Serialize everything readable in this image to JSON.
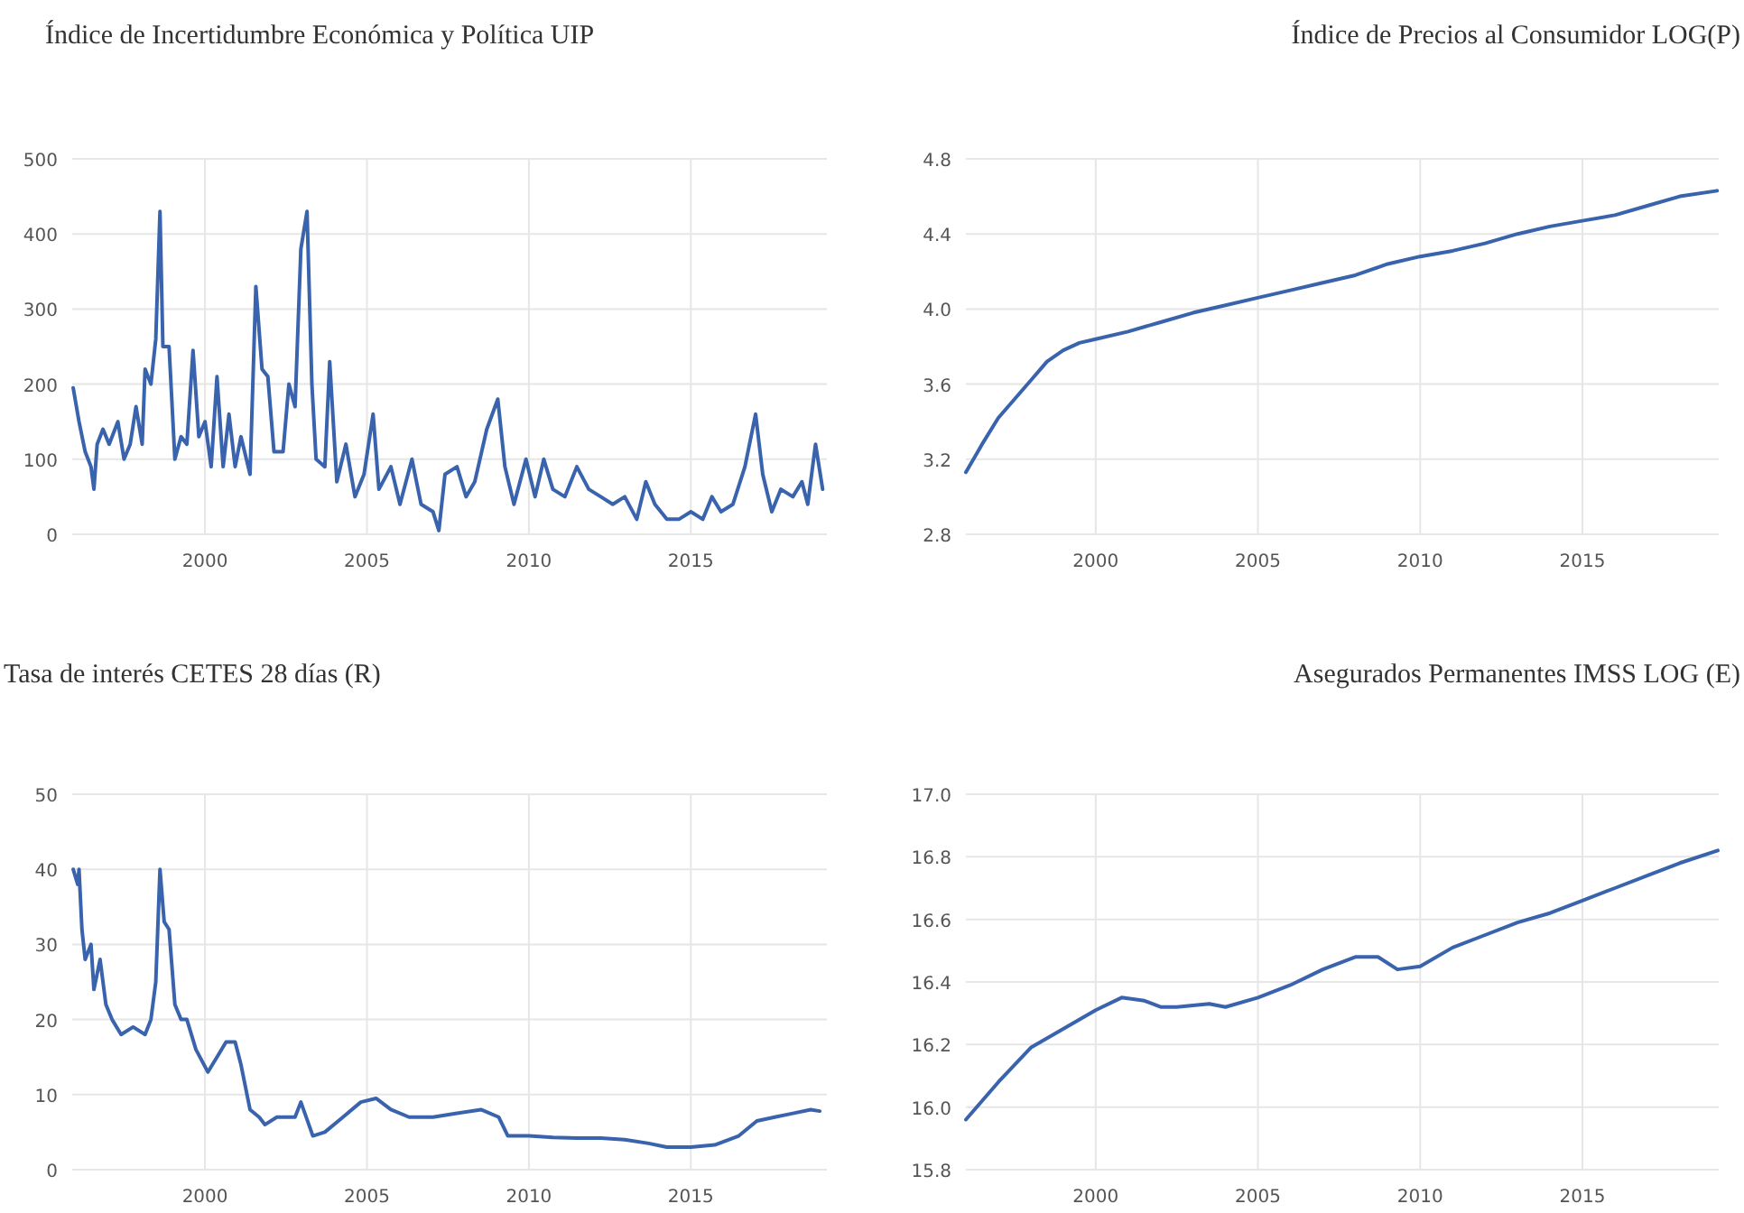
{
  "chart_data": [
    {
      "type": "line",
      "title": "Índice de Incertidumbre Económica y Política UIP",
      "xlim": [
        1995.9,
        2019.2
      ],
      "xticks": [
        2000,
        2005,
        2010,
        2015
      ],
      "ylim": [
        0,
        500
      ],
      "yticks": [
        0,
        100,
        200,
        300,
        400,
        500
      ],
      "grid": true,
      "series": [
        {
          "color": "#3a63ad",
          "x": [
            1995.93,
            1996.11,
            1996.3,
            1996.48,
            1996.57,
            1996.67,
            1996.85,
            1997.04,
            1997.31,
            1997.5,
            1997.69,
            1997.87,
            1998.06,
            1998.15,
            1998.33,
            1998.48,
            1998.61,
            1998.7,
            1998.89,
            1999.07,
            1999.26,
            1999.44,
            1999.63,
            1999.81,
            2000.0,
            2000.19,
            2000.37,
            2000.56,
            2000.74,
            2000.93,
            2001.11,
            2001.39,
            2001.57,
            2001.76,
            2001.94,
            2002.13,
            2002.41,
            2002.59,
            2002.78,
            2002.96,
            2003.15,
            2003.3,
            2003.43,
            2003.7,
            2003.85,
            2004.07,
            2004.35,
            2004.63,
            2004.91,
            2005.19,
            2005.37,
            2005.74,
            2006.02,
            2006.39,
            2006.67,
            2007.04,
            2007.22,
            2007.41,
            2007.78,
            2008.06,
            2008.33,
            2008.7,
            2009.04,
            2009.26,
            2009.54,
            2009.91,
            2010.19,
            2010.46,
            2010.74,
            2011.11,
            2011.48,
            2011.85,
            2012.22,
            2012.59,
            2012.96,
            2013.33,
            2013.61,
            2013.89,
            2014.26,
            2014.63,
            2015.0,
            2015.37,
            2015.65,
            2015.93,
            2016.3,
            2016.67,
            2017.0,
            2017.22,
            2017.5,
            2017.78,
            2018.15,
            2018.43,
            2018.61,
            2018.85,
            2019.07
          ],
          "values": [
            195,
            150,
            110,
            90,
            60,
            120,
            140,
            120,
            150,
            100,
            120,
            170,
            120,
            220,
            200,
            260,
            430,
            250,
            250,
            100,
            130,
            120,
            245,
            130,
            150,
            90,
            210,
            90,
            160,
            90,
            130,
            80,
            330,
            220,
            210,
            110,
            110,
            200,
            170,
            380,
            430,
            200,
            100,
            90,
            230,
            70,
            120,
            50,
            80,
            160,
            60,
            90,
            40,
            100,
            40,
            30,
            5,
            80,
            90,
            50,
            70,
            140,
            180,
            90,
            40,
            100,
            50,
            100,
            60,
            50,
            90,
            60,
            50,
            40,
            50,
            20,
            70,
            40,
            20,
            20,
            30,
            20,
            50,
            30,
            40,
            90,
            160,
            80,
            30,
            60,
            50,
            70,
            40,
            120,
            60
          ]
        }
      ]
    },
    {
      "type": "line",
      "title": "Índice de Precios al Consumidor LOG(P)",
      "xlim": [
        1996.0,
        2019.2
      ],
      "xticks": [
        2000,
        2005,
        2010,
        2015
      ],
      "ylim": [
        2.8,
        4.8
      ],
      "yticks": [
        {
          "value": 2.8,
          "label": "2.8"
        },
        {
          "value": 3.2,
          "label": "3.2"
        },
        {
          "value": 3.6,
          "label": "3.6"
        },
        {
          "value": 4.0,
          "label": "4.0"
        },
        {
          "value": 4.4,
          "label": "4.4"
        },
        {
          "value": 4.8,
          "label": "4.8"
        }
      ],
      "grid": true,
      "series": [
        {
          "color": "#3a63ad",
          "x": [
            1996.0,
            1996.5,
            1997,
            1997.5,
            1998,
            1998.5,
            1999,
            1999.5,
            2000,
            2001,
            2002,
            2003,
            2004,
            2005,
            2006,
            2007,
            2008,
            2009,
            2010,
            2011,
            2012,
            2013,
            2014,
            2015,
            2016,
            2017,
            2018,
            2019.15
          ],
          "values": [
            3.13,
            3.28,
            3.42,
            3.52,
            3.62,
            3.72,
            3.78,
            3.82,
            3.84,
            3.88,
            3.93,
            3.98,
            4.02,
            4.06,
            4.1,
            4.14,
            4.18,
            4.24,
            4.28,
            4.31,
            4.35,
            4.4,
            4.44,
            4.47,
            4.5,
            4.55,
            4.6,
            4.63
          ]
        }
      ]
    },
    {
      "type": "line",
      "title": "Tasa de interés CETES 28 días (R)",
      "xlim": [
        1995.9,
        2019.2
      ],
      "xticks": [
        2000,
        2005,
        2010,
        2015
      ],
      "ylim": [
        0,
        50
      ],
      "yticks": [
        0,
        10,
        20,
        30,
        40,
        50
      ],
      "grid": true,
      "series": [
        {
          "color": "#3a63ad",
          "x": [
            1995.93,
            1996.07,
            1996.11,
            1996.2,
            1996.3,
            1996.48,
            1996.57,
            1996.76,
            1996.94,
            1997.13,
            1997.41,
            1997.78,
            1998.15,
            1998.33,
            1998.48,
            1998.61,
            1998.74,
            1998.89,
            1999.07,
            1999.26,
            1999.44,
            1999.72,
            2000.09,
            2000.37,
            2000.65,
            2000.93,
            2001.11,
            2001.39,
            2001.67,
            2001.85,
            2002.22,
            2002.78,
            2002.96,
            2003.33,
            2003.7,
            2004.26,
            2004.81,
            2005.28,
            2005.74,
            2006.3,
            2007.04,
            2007.78,
            2008.52,
            2009.07,
            2009.35,
            2010.0,
            2010.74,
            2011.48,
            2012.22,
            2012.96,
            2013.7,
            2014.26,
            2015.0,
            2015.74,
            2016.48,
            2017.04,
            2017.59,
            2018.15,
            2018.7,
            2018.98
          ],
          "values": [
            40,
            38,
            40,
            32,
            28,
            30,
            24,
            28,
            22,
            20,
            18,
            19,
            18,
            20,
            25,
            40,
            33,
            32,
            22,
            20,
            20,
            16,
            13,
            15,
            17,
            17,
            14,
            8,
            7,
            6,
            7,
            7,
            9,
            4.5,
            5,
            7,
            9,
            9.5,
            8,
            7,
            7,
            7.5,
            8,
            7,
            4.5,
            4.5,
            4.3,
            4.2,
            4.2,
            4,
            3.5,
            3,
            3,
            3.3,
            4.5,
            6.5,
            7,
            7.5,
            8,
            7.8
          ]
        }
      ]
    },
    {
      "type": "line",
      "title": "Asegurados Permanentes IMSS LOG (E)",
      "xlim": [
        1996.0,
        2019.2
      ],
      "xticks": [
        2000,
        2005,
        2010,
        2015
      ],
      "ylim": [
        15.8,
        17.0
      ],
      "yticks": [
        {
          "value": 15.8,
          "label": "15.8"
        },
        {
          "value": 16.0,
          "label": "16.0"
        },
        {
          "value": 16.2,
          "label": "16.2"
        },
        {
          "value": 16.4,
          "label": "16.4"
        },
        {
          "value": 16.6,
          "label": "16.6"
        },
        {
          "value": 16.8,
          "label": "16.8"
        },
        {
          "value": 17.0,
          "label": "17.0"
        }
      ],
      "grid": true,
      "series": [
        {
          "color": "#3a63ad",
          "x": [
            1996,
            1997,
            1998,
            1999,
            2000,
            2000.8,
            2001.5,
            2002,
            2002.5,
            2003.5,
            2004,
            2005,
            2006,
            2007,
            2008,
            2008.7,
            2009.3,
            2010,
            2011,
            2012,
            2013,
            2014,
            2015,
            2016,
            2017,
            2018,
            2019.17
          ],
          "values": [
            15.96,
            16.08,
            16.19,
            16.25,
            16.31,
            16.35,
            16.34,
            16.32,
            16.32,
            16.33,
            16.32,
            16.35,
            16.39,
            16.44,
            16.48,
            16.48,
            16.44,
            16.45,
            16.51,
            16.55,
            16.59,
            16.62,
            16.66,
            16.7,
            16.74,
            16.78,
            16.82
          ]
        }
      ]
    }
  ]
}
